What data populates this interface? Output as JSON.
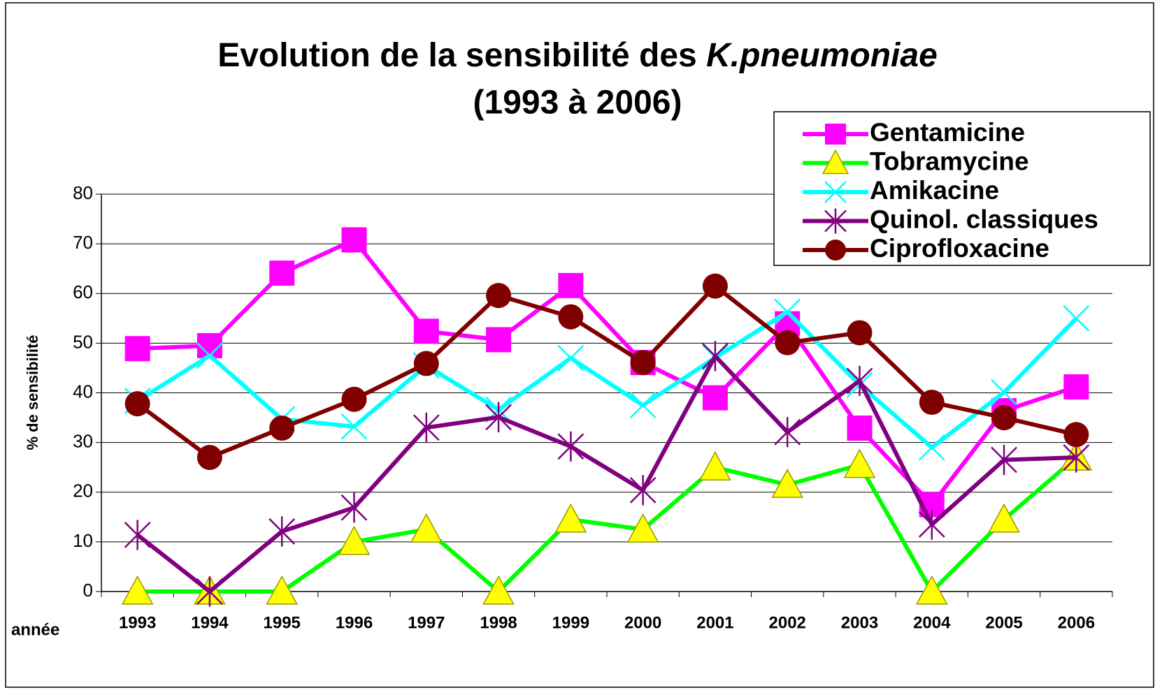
{
  "chart_data": {
    "type": "line",
    "title": "Evolution de la sensibilité des",
    "title_species": "K.pneumoniae",
    "subtitle": "(1993 à 2006)",
    "y_label": "% de sensibilité",
    "x_label": "année",
    "categories": [
      "1993",
      "1994",
      "1995",
      "1996",
      "1997",
      "1998",
      "1999",
      "2000",
      "2001",
      "2002",
      "2003",
      "2004",
      "2005",
      "2006"
    ],
    "series": [
      {
        "name": "Gentamicine",
        "color": "#ff00ff",
        "marker": "square",
        "marker_color": "#ff00ff",
        "values": [
          48.9,
          49.5,
          64.1,
          70.8,
          52.4,
          50.7,
          61.6,
          46.1,
          39,
          53.9,
          32.9,
          17.5,
          36.4,
          41.2
        ]
      },
      {
        "name": "Tobramycine",
        "color": "#00ff00",
        "marker": "triangle",
        "marker_color": "#ffff00",
        "values": [
          0,
          0,
          0,
          10,
          12.5,
          0,
          14.5,
          12.5,
          25,
          21.5,
          25.5,
          0,
          14.5,
          27
        ]
      },
      {
        "name": "Amikacine",
        "color": "#00ffff",
        "marker": "x",
        "marker_color": "#00ffff",
        "values": [
          38.4,
          47.5,
          34.7,
          33.2,
          45.5,
          36.6,
          47,
          37.5,
          47.1,
          56.3,
          41.6,
          29,
          40.1,
          55
        ]
      },
      {
        "name": "Quinol. classiques",
        "color": "#800080",
        "marker": "star",
        "marker_color": "#800080",
        "values": [
          11.4,
          0,
          12.1,
          16.9,
          33,
          35.1,
          29.2,
          20.4,
          47.4,
          32.1,
          42.4,
          13.5,
          26.5,
          27
        ]
      },
      {
        "name": "Ciprofloxacine",
        "color": "#800000",
        "marker": "circle",
        "marker_color": "#800000",
        "values": [
          37.8,
          27,
          32.9,
          38.7,
          45.9,
          59.6,
          55.3,
          46.1,
          61.5,
          50.1,
          52.1,
          38.1,
          35,
          31.6
        ]
      }
    ],
    "ylim": [
      0,
      80
    ],
    "yticks": [
      0,
      10,
      20,
      30,
      40,
      50,
      60,
      70,
      80
    ],
    "grid": true
  }
}
